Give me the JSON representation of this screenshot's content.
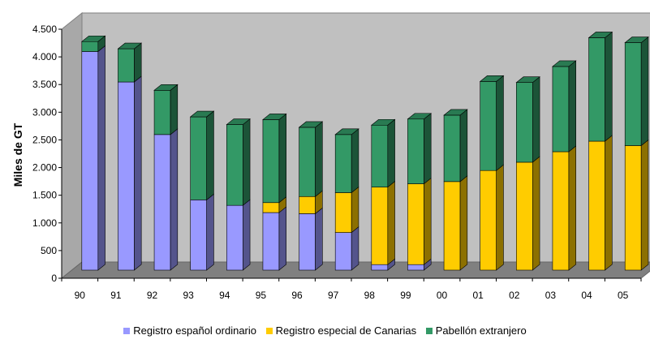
{
  "chart_data": {
    "type": "bar",
    "stacked": true,
    "three_d": true,
    "title": "",
    "xlabel": "",
    "ylabel": "Miles de GT",
    "ylim": [
      0,
      4500
    ],
    "y_ticks": [
      0,
      500,
      1000,
      1500,
      2000,
      2500,
      3000,
      3500,
      4000,
      4500
    ],
    "y_tick_labels": [
      "0",
      "500",
      "1.000",
      "1.500",
      "2.000",
      "2.500",
      "3.000",
      "3.500",
      "4.000",
      "4.500"
    ],
    "grid": false,
    "legend_position": "bottom",
    "categories": [
      "90",
      "91",
      "92",
      "93",
      "94",
      "95",
      "96",
      "97",
      "98",
      "99",
      "00",
      "01",
      "02",
      "03",
      "04",
      "05"
    ],
    "series": [
      {
        "name": "Registro español ordinario",
        "color": "#9999ff",
        "values": [
          3950,
          3400,
          2450,
          1270,
          1170,
          1040,
          1020,
          680,
          100,
          100,
          0,
          0,
          0,
          0,
          0,
          0
        ]
      },
      {
        "name": "Registro especial de Canarias",
        "color": "#ffcc00",
        "values": [
          0,
          0,
          0,
          0,
          0,
          180,
          310,
          720,
          1400,
          1460,
          1600,
          1800,
          1950,
          2140,
          2330,
          2250
        ]
      },
      {
        "name": "Pabellón extranjero",
        "color": "#339966",
        "values": [
          180,
          600,
          800,
          1500,
          1460,
          1500,
          1250,
          1050,
          1120,
          1170,
          1200,
          1610,
          1440,
          1540,
          1870,
          1860
        ]
      }
    ]
  }
}
